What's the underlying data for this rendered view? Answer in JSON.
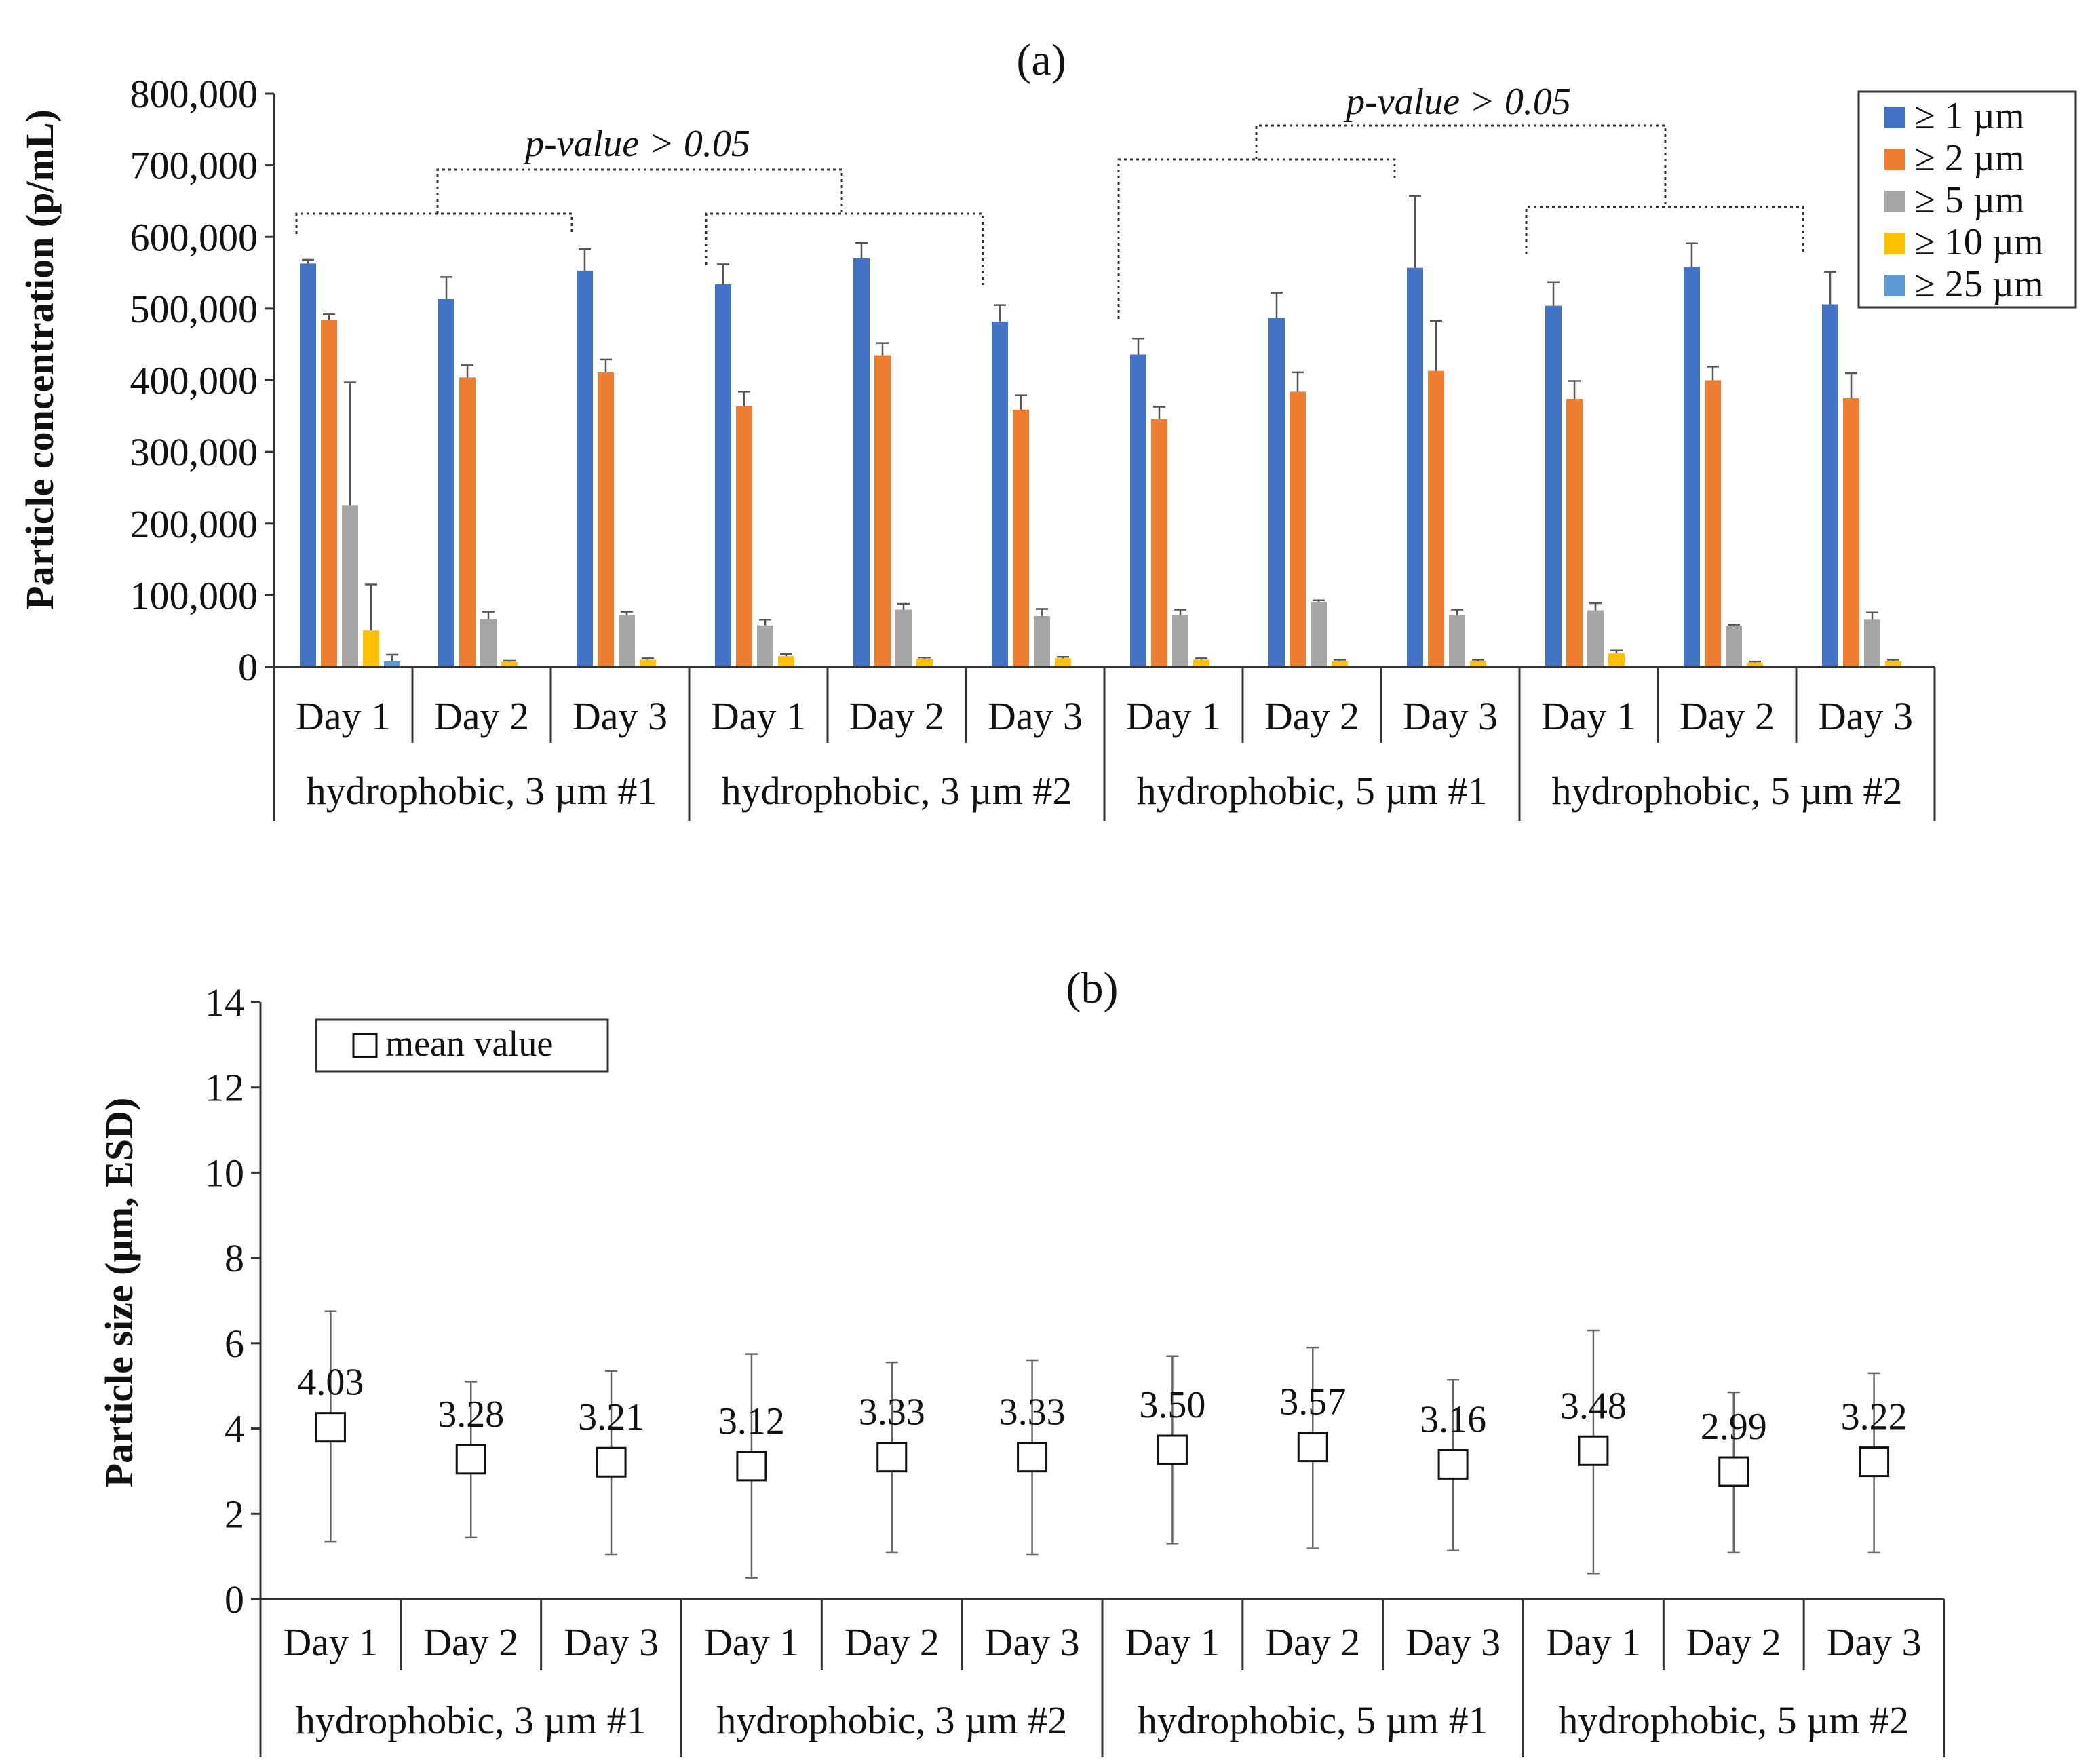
{
  "chart_data": [
    {
      "panel_label": "(a)",
      "type": "bar",
      "ylabel": "Particle concentration (p/mL)",
      "xlabel": "",
      "ylim": [
        0,
        800000
      ],
      "yticks": [
        "800,000",
        "700,000",
        "600,000",
        "500,000",
        "400,000",
        "300,000",
        "200,000",
        "100,000",
        "0"
      ],
      "ytick_values": [
        800000,
        700000,
        600000,
        500000,
        400000,
        300000,
        200000,
        100000,
        0
      ],
      "categories": [
        "Day 1",
        "Day 2",
        "Day 3",
        "Day 1",
        "Day 2",
        "Day 3",
        "Day 1",
        "Day 2",
        "Day 3",
        "Day 1",
        "Day 2",
        "Day 3"
      ],
      "groups": [
        "hydrophobic, 3 µm #1",
        "hydrophobic, 3 µm #2",
        "hydrophobic, 5 µm #1",
        "hydrophobic, 5 µm #2"
      ],
      "legend_position": "top-right",
      "series": [
        {
          "name": "≥ 1 µm",
          "color": "#4472C4",
          "values": [
            563000,
            514000,
            553000,
            534000,
            570000,
            482000,
            436000,
            487000,
            557000,
            504000,
            558000,
            506000
          ],
          "errors": [
            5000,
            30000,
            30000,
            28000,
            22000,
            23000,
            22000,
            35000,
            100000,
            33000,
            33000,
            45000
          ]
        },
        {
          "name": "≥ 2 µm",
          "color": "#ED7D31",
          "values": [
            484000,
            404000,
            411000,
            364000,
            435000,
            359000,
            346000,
            384000,
            413000,
            374000,
            400000,
            375000
          ],
          "errors": [
            8000,
            17000,
            18000,
            20000,
            17000,
            20000,
            17000,
            27000,
            70000,
            25000,
            19000,
            35000
          ]
        },
        {
          "name": "≥ 5 µm",
          "color": "#A5A5A5",
          "values": [
            225000,
            67000,
            72000,
            58000,
            80000,
            71000,
            72000,
            91000,
            72000,
            79000,
            57000,
            66000
          ],
          "errors": [
            172000,
            10000,
            5000,
            8000,
            8000,
            10000,
            8000,
            2000,
            8000,
            10000,
            2000,
            10000
          ]
        },
        {
          "name": "≥ 10 µm",
          "color": "#FFC000",
          "values": [
            51000,
            7000,
            10000,
            15000,
            11000,
            12000,
            10000,
            8000,
            8000,
            19000,
            6000,
            8000
          ],
          "errors": [
            64000,
            1500,
            2000,
            3000,
            2000,
            2000,
            2000,
            2000,
            2000,
            4000,
            1500,
            2000
          ]
        },
        {
          "name": "≥ 25 µm",
          "color": "#5B9BD5",
          "values": [
            8000,
            0,
            0,
            0,
            0,
            0,
            0,
            0,
            0,
            0,
            0,
            0
          ],
          "errors": [
            9000,
            0,
            0,
            0,
            0,
            0,
            0,
            0,
            0,
            0,
            0,
            0
          ]
        }
      ],
      "annotations": [
        "p-value > 0.05",
        "p-value > 0.05"
      ]
    },
    {
      "panel_label": "(b)",
      "type": "scatter",
      "ylabel": "Particle size (µm, ESD)",
      "xlabel": "",
      "ylim": [
        0,
        14
      ],
      "yticks": [
        "14",
        "12",
        "10",
        "8",
        "6",
        "4",
        "2",
        "0"
      ],
      "ytick_values": [
        14,
        12,
        10,
        8,
        6,
        4,
        2,
        0
      ],
      "categories": [
        "Day 1",
        "Day 2",
        "Day 3",
        "Day 1",
        "Day 2",
        "Day 3",
        "Day 1",
        "Day 2",
        "Day 3",
        "Day 1",
        "Day 2",
        "Day 3"
      ],
      "groups": [
        "hydrophobic, 3 µm #1",
        "hydrophobic, 3 µm #2",
        "hydrophobic, 5 µm #1",
        "hydrophobic, 5 µm #2"
      ],
      "legend_position": "top-left",
      "series": [
        {
          "name": "mean value",
          "values": [
            4.03,
            3.28,
            3.21,
            3.12,
            3.33,
            3.33,
            3.5,
            3.57,
            3.16,
            3.48,
            2.99,
            3.22
          ],
          "labels": [
            "4.03",
            "3.28",
            "3.21",
            "3.12",
            "3.33",
            "3.33",
            "3.50",
            "3.57",
            "3.16",
            "3.48",
            "2.99",
            "3.22"
          ],
          "err_low": [
            1.35,
            1.45,
            1.05,
            0.5,
            1.1,
            1.05,
            1.3,
            1.2,
            1.15,
            0.6,
            1.1,
            1.1
          ],
          "err_high": [
            6.75,
            5.1,
            5.35,
            5.75,
            5.55,
            5.6,
            5.7,
            5.9,
            5.15,
            6.3,
            4.85,
            5.3
          ]
        }
      ]
    }
  ]
}
